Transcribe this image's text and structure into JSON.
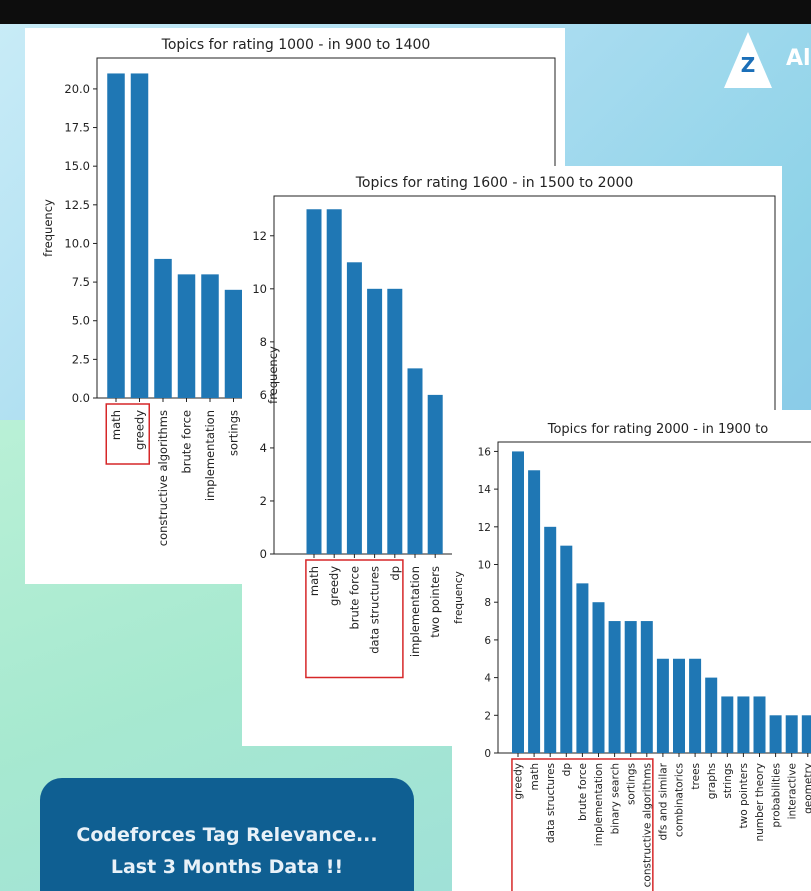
{
  "caption": {
    "line1": "Codeforces Tag Relevance...",
    "line2": "Last 3 Months Data !!"
  },
  "logo": {
    "letter": "Z",
    "text": "Al",
    "icon": "z-logo-icon"
  },
  "colors": {
    "bar": "#1f77b4",
    "highlight": "#d62728"
  },
  "chart_data": [
    {
      "type": "bar",
      "title": "Topics for rating 1000 - in 900 to 1400",
      "ylabel": "frequency",
      "ylim": [
        0,
        22
      ],
      "yticks": [
        0.0,
        2.5,
        5.0,
        7.5,
        10.0,
        12.5,
        15.0,
        17.5,
        20.0
      ],
      "categories": [
        "math",
        "greedy",
        "constructive algorithms",
        "brute force",
        "implementation",
        "sortings"
      ],
      "values": [
        21,
        21,
        9,
        8,
        8,
        7
      ],
      "highlighted": [
        "math",
        "greedy"
      ]
    },
    {
      "type": "bar",
      "title": "Topics for rating 1600 - in 1500 to 2000",
      "ylabel": "frequency",
      "ylim": [
        0,
        13.5
      ],
      "yticks": [
        0,
        2,
        4,
        6,
        8,
        10,
        12
      ],
      "categories": [
        "math",
        "greedy",
        "brute force",
        "data structures",
        "dp",
        "implementation",
        "two pointers"
      ],
      "values": [
        13,
        13,
        11,
        10,
        10,
        7,
        6
      ],
      "highlighted": [
        "math",
        "greedy",
        "brute force",
        "data structures",
        "dp"
      ]
    },
    {
      "type": "bar",
      "title": "Topics for rating 2000 - in 1900 to",
      "ylabel": "frequency",
      "ylim": [
        0,
        16.5
      ],
      "yticks": [
        0,
        2,
        4,
        6,
        8,
        10,
        12,
        14,
        16
      ],
      "categories": [
        "greedy",
        "math",
        "data structures",
        "dp",
        "brute force",
        "implementation",
        "binary search",
        "sortings",
        "constructive algorithms",
        "dfs and similar",
        "combinatorics",
        "trees",
        "graphs",
        "strings",
        "two pointers",
        "number theory",
        "probabilities",
        "interactive",
        "geometry"
      ],
      "values": [
        16,
        15,
        12,
        11,
        9,
        8,
        7,
        7,
        7,
        5,
        5,
        5,
        4,
        3,
        3,
        3,
        2,
        2,
        2
      ],
      "highlighted": [
        "greedy",
        "math",
        "data structures",
        "dp",
        "brute force",
        "implementation",
        "binary search",
        "sortings",
        "constructive algorithms"
      ]
    }
  ]
}
